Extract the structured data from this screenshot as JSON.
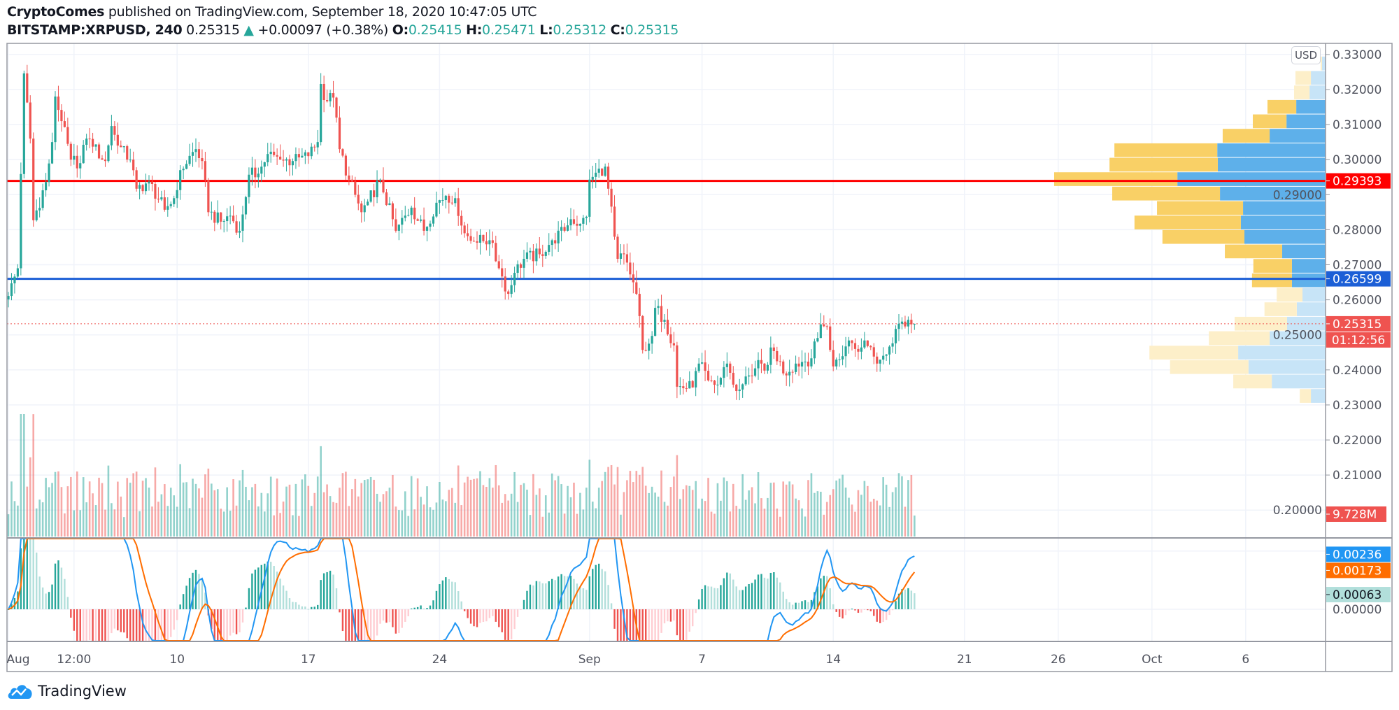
{
  "header": {
    "author": "CryptoComes",
    "published": " published on TradingView.com, September 18, 2020 10:47:05 UTC",
    "symbol": "BITSTAMP:XRPUSD, 240",
    "last": "0.25315",
    "arrow": "▲",
    "change": "+0.00097 (+0.38%)",
    "o_label": "O:",
    "o": "0.25415",
    "h_label": "H:",
    "h": "0.25471",
    "l_label": "L:",
    "l": "0.25312",
    "c_label": "C:",
    "c": "0.25315"
  },
  "footer": {
    "brand": "TradingView",
    "logo_icon": "tradingview-cloud-logo"
  },
  "colors": {
    "up": "#26a69a",
    "down": "#ef5350",
    "resistance_line": "#ff0000",
    "support_line": "#1c5fd6",
    "macd": "#2196f3",
    "signal": "#ff6d00",
    "hist_up_strong": "#26a69a",
    "hist_up_weak": "#b2dfdb",
    "hist_down_strong": "#ef5350",
    "hist_down_weak": "#ffcdd2",
    "vp_up": "#5eb0ea",
    "vp_down": "#f9d066",
    "vp_up_light": "#c7e4f7",
    "vp_down_light": "#fdefc9",
    "axis_text": "#50535e",
    "grid": "#f0f3fa"
  },
  "chart_data": {
    "type": "candlestick",
    "interval": "240",
    "currency": "USD",
    "price_path": [
      [
        "2020-08-01T00:00",
        0.2611
      ],
      [
        "2020-08-01T12:00",
        0.269
      ],
      [
        "2020-08-01T20:00",
        0.3246
      ],
      [
        "2020-08-02T04:00",
        0.306
      ],
      [
        "2020-08-02T08:00",
        0.2827
      ],
      [
        "2020-08-03T00:00",
        0.2936
      ],
      [
        "2020-08-03T08:00",
        0.305
      ],
      [
        "2020-08-03T12:00",
        0.318
      ],
      [
        "2020-08-03T20:00",
        0.311
      ],
      [
        "2020-08-04T08:00",
        0.3
      ],
      [
        "2020-08-04T20:00",
        0.299
      ],
      [
        "2020-08-05T04:00",
        0.306
      ],
      [
        "2020-08-05T12:00",
        0.3037
      ],
      [
        "2020-08-06T04:00",
        0.2996
      ],
      [
        "2020-08-06T12:00",
        0.3096
      ],
      [
        "2020-08-06T20:00",
        0.304
      ],
      [
        "2020-08-07T12:00",
        0.3
      ],
      [
        "2020-08-07T20:00",
        0.2917
      ],
      [
        "2020-08-08T12:00",
        0.2937
      ],
      [
        "2020-08-09T08:00",
        0.2857
      ],
      [
        "2020-08-09T20:00",
        0.289
      ],
      [
        "2020-08-10T04:00",
        0.297
      ],
      [
        "2020-08-11T00:00",
        0.303
      ],
      [
        "2020-08-11T08:00",
        0.2996
      ],
      [
        "2020-08-11T16:00",
        0.285
      ],
      [
        "2020-08-12T08:00",
        0.2823
      ],
      [
        "2020-08-12T20:00",
        0.284
      ],
      [
        "2020-08-13T08:00",
        0.2797
      ],
      [
        "2020-08-13T20:00",
        0.2957
      ],
      [
        "2020-08-14T08:00",
        0.296
      ],
      [
        "2020-08-14T20:00",
        0.3016
      ],
      [
        "2020-08-15T12:00",
        0.3
      ],
      [
        "2020-08-16T04:00",
        0.2996
      ],
      [
        "2020-08-17T00:00",
        0.301
      ],
      [
        "2020-08-17T12:00",
        0.305
      ],
      [
        "2020-08-17T16:00",
        0.3216
      ],
      [
        "2020-08-17T20:00",
        0.317
      ],
      [
        "2020-08-18T08:00",
        0.3177
      ],
      [
        "2020-08-18T16:00",
        0.303
      ],
      [
        "2020-08-19T04:00",
        0.2943
      ],
      [
        "2020-08-19T20:00",
        0.285
      ],
      [
        "2020-08-20T04:00",
        0.288
      ],
      [
        "2020-08-20T20:00",
        0.2943
      ],
      [
        "2020-08-21T16:00",
        0.2797
      ],
      [
        "2020-08-22T12:00",
        0.2863
      ],
      [
        "2020-08-23T04:00",
        0.2797
      ],
      [
        "2020-08-23T20:00",
        0.2877
      ],
      [
        "2020-08-24T08:00",
        0.2897
      ],
      [
        "2020-08-24T20:00",
        0.289
      ],
      [
        "2020-08-25T08:00",
        0.279
      ],
      [
        "2020-08-25T20:00",
        0.2767
      ],
      [
        "2020-08-26T16:00",
        0.277
      ],
      [
        "2020-08-27T04:00",
        0.269
      ],
      [
        "2020-08-27T16:00",
        0.2617
      ],
      [
        "2020-08-28T00:00",
        0.2677
      ],
      [
        "2020-08-28T12:00",
        0.2717
      ],
      [
        "2020-08-29T08:00",
        0.273
      ],
      [
        "2020-08-30T00:00",
        0.277
      ],
      [
        "2020-08-30T16:00",
        0.2797
      ],
      [
        "2020-08-31T00:00",
        0.283
      ],
      [
        "2020-08-31T12:00",
        0.2817
      ],
      [
        "2020-08-31T20:00",
        0.2837
      ],
      [
        "2020-09-01T00:00",
        0.2943
      ],
      [
        "2020-09-01T20:00",
        0.298
      ],
      [
        "2020-09-02T00:00",
        0.2917
      ],
      [
        "2020-09-02T08:00",
        0.278
      ],
      [
        "2020-09-02T12:00",
        0.2717
      ],
      [
        "2020-09-02T20:00",
        0.273
      ],
      [
        "2020-09-03T08:00",
        0.265
      ],
      [
        "2020-09-03T12:00",
        0.2617
      ],
      [
        "2020-09-03T20:00",
        0.2457
      ],
      [
        "2020-09-04T08:00",
        0.2497
      ],
      [
        "2020-09-04T12:00",
        0.2577
      ],
      [
        "2020-09-05T00:00",
        0.2543
      ],
      [
        "2020-09-05T12:00",
        0.247
      ],
      [
        "2020-09-05T16:00",
        0.2352
      ],
      [
        "2020-09-06T12:00",
        0.235
      ],
      [
        "2020-09-06T20:00",
        0.2418
      ],
      [
        "2020-09-07T08:00",
        0.237
      ],
      [
        "2020-09-07T20:00",
        0.2358
      ],
      [
        "2020-09-08T08:00",
        0.2418
      ],
      [
        "2020-09-08T16:00",
        0.2358
      ],
      [
        "2020-09-09T00:00",
        0.2344
      ],
      [
        "2020-09-09T12:00",
        0.2384
      ],
      [
        "2020-09-10T04:00",
        0.2418
      ],
      [
        "2020-09-10T08:00",
        0.2398
      ],
      [
        "2020-09-10T16:00",
        0.2464
      ],
      [
        "2020-09-11T04:00",
        0.2424
      ],
      [
        "2020-09-11T08:00",
        0.239
      ],
      [
        "2020-09-12T00:00",
        0.2418
      ],
      [
        "2020-09-12T20:00",
        0.2433
      ],
      [
        "2020-09-13T04:00",
        0.2491
      ],
      [
        "2020-09-13T08:00",
        0.253
      ],
      [
        "2020-09-13T16:00",
        0.2524
      ],
      [
        "2020-09-13T20:00",
        0.2457
      ],
      [
        "2020-09-14T00:00",
        0.241
      ],
      [
        "2020-09-14T08:00",
        0.243
      ],
      [
        "2020-09-14T20:00",
        0.2484
      ],
      [
        "2020-09-15T12:00",
        0.2464
      ],
      [
        "2020-09-15T16:00",
        0.2484
      ],
      [
        "2020-09-16T04:00",
        0.2438
      ],
      [
        "2020-09-16T08:00",
        0.2418
      ],
      [
        "2020-09-16T20:00",
        0.2444
      ],
      [
        "2020-09-17T08:00",
        0.2517
      ],
      [
        "2020-09-17T20:00",
        0.2524
      ],
      [
        "2020-09-18T00:00",
        0.2543
      ],
      [
        "2020-09-18T08:00",
        0.25315
      ]
    ],
    "price_axis": {
      "range": [
        0.2,
        0.33
      ],
      "ticks": [
        "0.33000",
        "0.32000",
        "0.31000",
        "0.30000",
        "0.29000",
        "0.28000",
        "0.27000",
        "0.26000",
        "0.25000",
        "0.24000",
        "0.23000",
        "0.22000",
        "0.21000",
        "0.20000"
      ]
    },
    "time_axis": {
      "labels": [
        {
          "text": "Aug",
          "date": "2020-08-01T00:00"
        },
        {
          "text": "12:00",
          "date": "2020-08-04T12:00"
        },
        {
          "text": "10",
          "date": "2020-08-10T00:00"
        },
        {
          "text": "17",
          "date": "2020-08-17T00:00"
        },
        {
          "text": "24",
          "date": "2020-08-24T00:00"
        },
        {
          "text": "Sep",
          "date": "2020-09-01T00:00"
        },
        {
          "text": "7",
          "date": "2020-09-07T00:00"
        },
        {
          "text": "14",
          "date": "2020-09-14T00:00"
        },
        {
          "text": "21",
          "date": "2020-09-21T00:00"
        },
        {
          "text": "26",
          "date": "2020-09-26T00:00"
        },
        {
          "text": "Oct",
          "date": "2020-10-01T00:00"
        },
        {
          "text": "6",
          "date": "2020-10-06T00:00"
        }
      ]
    },
    "horizontal_lines": [
      {
        "name": "resistance",
        "price": 0.29393,
        "label": "0.29393"
      },
      {
        "name": "support",
        "price": 0.26599,
        "label": "0.26599"
      }
    ],
    "last_price": {
      "price": 0.25315,
      "label": "0.25315",
      "countdown": "01:12:56"
    },
    "volume": {
      "last_label": "9.728M"
    },
    "macd": {
      "zero_label": "0.00000",
      "macd_value": 0.00236,
      "macd_label": "0.00236",
      "signal_value": 0.00173,
      "signal_label": "0.00173",
      "hist_value": 0.00063,
      "hist_label": "0.00063"
    },
    "volume_profile": {
      "price_range": [
        0.2304,
        0.3294
      ],
      "value_area_rows": [
        3,
        15
      ],
      "rows": [
        {
          "up": 1.3,
          "down": 0.5
        },
        {
          "up": 5.4,
          "down": 5.7
        },
        {
          "up": 5.9,
          "down": 5.7
        },
        {
          "up": 10.8,
          "down": 10.6
        },
        {
          "up": 14.4,
          "down": 12.4
        },
        {
          "up": 20.6,
          "down": 17.3
        },
        {
          "up": 39.9,
          "down": 37.9
        },
        {
          "up": 39.7,
          "down": 39.9
        },
        {
          "up": 54.6,
          "down": 45.4
        },
        {
          "up": 38.9,
          "down": 39.7
        },
        {
          "up": 30.4,
          "down": 31.7
        },
        {
          "up": 31.2,
          "down": 39.2
        },
        {
          "up": 29.9,
          "down": 30.2
        },
        {
          "up": 16.0,
          "down": 21.1
        },
        {
          "up": 12.4,
          "down": 14.2
        },
        {
          "up": 12.4,
          "down": 14.7
        },
        {
          "up": 8.5,
          "down": 9.5
        },
        {
          "up": 10.6,
          "down": 11.9
        },
        {
          "up": 14.2,
          "down": 19.3
        },
        {
          "up": 20.6,
          "down": 22.4
        },
        {
          "up": 32.2,
          "down": 32.7
        },
        {
          "up": 28.4,
          "down": 28.9
        },
        {
          "up": 19.8,
          "down": 14.2
        },
        {
          "up": 5.4,
          "down": 4.1
        }
      ]
    }
  }
}
